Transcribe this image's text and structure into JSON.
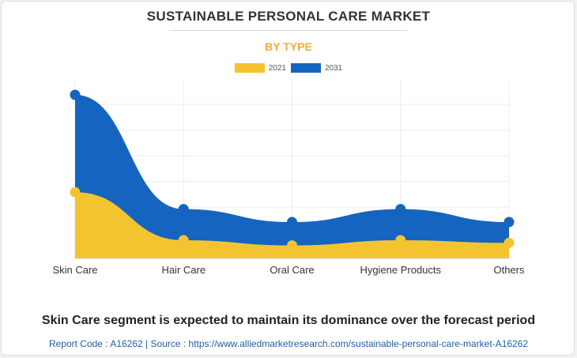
{
  "header": {
    "title": "SUSTAINABLE PERSONAL CARE MARKET",
    "subtitle": "BY TYPE"
  },
  "legend": [
    {
      "label": "2021",
      "color": "#f4c430"
    },
    {
      "label": "2031",
      "color": "#1565c0"
    }
  ],
  "chart_data": {
    "type": "area",
    "title": "SUSTAINABLE PERSONAL CARE MARKET",
    "subtitle": "BY TYPE",
    "categories": [
      "Skin Care",
      "Hair Care",
      "Oral Care",
      "Hygiene Products",
      "Others"
    ],
    "series": [
      {
        "name": "2021",
        "color": "#f4c430",
        "values": [
          2.55,
          0.7,
          0.5,
          0.7,
          0.6
        ]
      },
      {
        "name": "2031",
        "color": "#1565c0",
        "values": [
          6.3,
          1.9,
          1.4,
          1.9,
          1.4
        ]
      }
    ],
    "ylim": [
      0,
      6.3
    ],
    "y_axis_labels": false,
    "grid": true,
    "stacked": false,
    "legend_position": "top-center"
  },
  "footer": {
    "headline": "Skin Care segment is expected to maintain its dominance over the forecast period",
    "report_code_label": "Report Code : A16262",
    "separator": "|",
    "source_label": "Source : https://www.alliedmarketresearch.com/sustainable-personal-care-market-A16262"
  }
}
